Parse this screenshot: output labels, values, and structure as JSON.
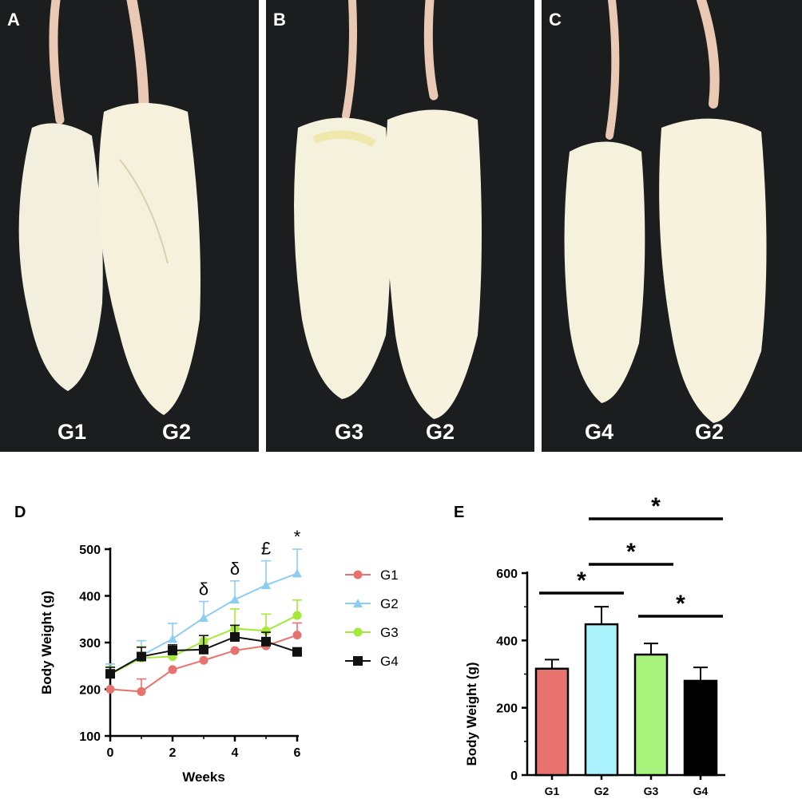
{
  "photos": [
    {
      "letter": "A",
      "left": "G1",
      "right": "G2"
    },
    {
      "letter": "B",
      "left": "G3",
      "right": "G2"
    },
    {
      "letter": "C",
      "left": "G4",
      "right": "G2"
    }
  ],
  "chart_data": [
    {
      "panel": "D",
      "type": "line",
      "xlabel": "Weeks",
      "ylabel": "Body Weight (g)",
      "xlim": [
        0,
        6
      ],
      "ylim": [
        100,
        500
      ],
      "xticks": [
        "0",
        "2",
        "4",
        "6"
      ],
      "yticks": [
        "100",
        "200",
        "300",
        "400",
        "500"
      ],
      "legend": "right",
      "x": [
        0,
        1,
        2,
        3,
        4,
        5,
        6
      ],
      "series": [
        {
          "name": "G1",
          "color": "#e8736e",
          "marker": "circle",
          "values": [
            200,
            195,
            242,
            262,
            283,
            293,
            316
          ],
          "error": [
            0,
            27,
            0,
            0,
            0,
            0,
            26
          ]
        },
        {
          "name": "G2",
          "color": "#8ecdf2",
          "marker": "triangle",
          "values": [
            232,
            272,
            308,
            353,
            392,
            423,
            448
          ],
          "error": [
            22,
            32,
            33,
            35,
            40,
            52,
            52
          ]
        },
        {
          "name": "G3",
          "color": "#a6e83a",
          "marker": "circle",
          "values": [
            232,
            267,
            270,
            303,
            330,
            325,
            358
          ],
          "error": [
            16,
            24,
            22,
            0,
            42,
            36,
            33
          ]
        },
        {
          "name": "G4",
          "color": "#111111",
          "marker": "square",
          "values": [
            233,
            270,
            283,
            285,
            312,
            302,
            280
          ],
          "error": [
            14,
            20,
            12,
            30,
            25,
            20,
            0
          ]
        }
      ],
      "annotations": [
        {
          "text": "δ",
          "x": 3
        },
        {
          "text": "δ",
          "x": 4
        },
        {
          "text": "£",
          "x": 5
        },
        {
          "text": "*",
          "x": 6
        }
      ]
    },
    {
      "panel": "E",
      "type": "bar",
      "ylabel": "Body Weight (g)",
      "ylim": [
        0,
        600
      ],
      "yticks": [
        "0",
        "200",
        "400",
        "600"
      ],
      "categories": [
        "G1",
        "G2",
        "G3",
        "G4"
      ],
      "values": [
        316,
        448,
        358,
        280
      ],
      "error": [
        27,
        52,
        33,
        40
      ],
      "colors": [
        "#e8736e",
        "#a9f2fc",
        "#a8f37c",
        "#000000"
      ],
      "significance": [
        {
          "from": "G1",
          "to": "G2",
          "label": "*"
        },
        {
          "from": "G2",
          "to": "G3",
          "label": "*"
        },
        {
          "from": "G2",
          "to": "G4",
          "label": "*"
        },
        {
          "from": "G3",
          "to": "G4",
          "label": "*"
        }
      ]
    }
  ]
}
